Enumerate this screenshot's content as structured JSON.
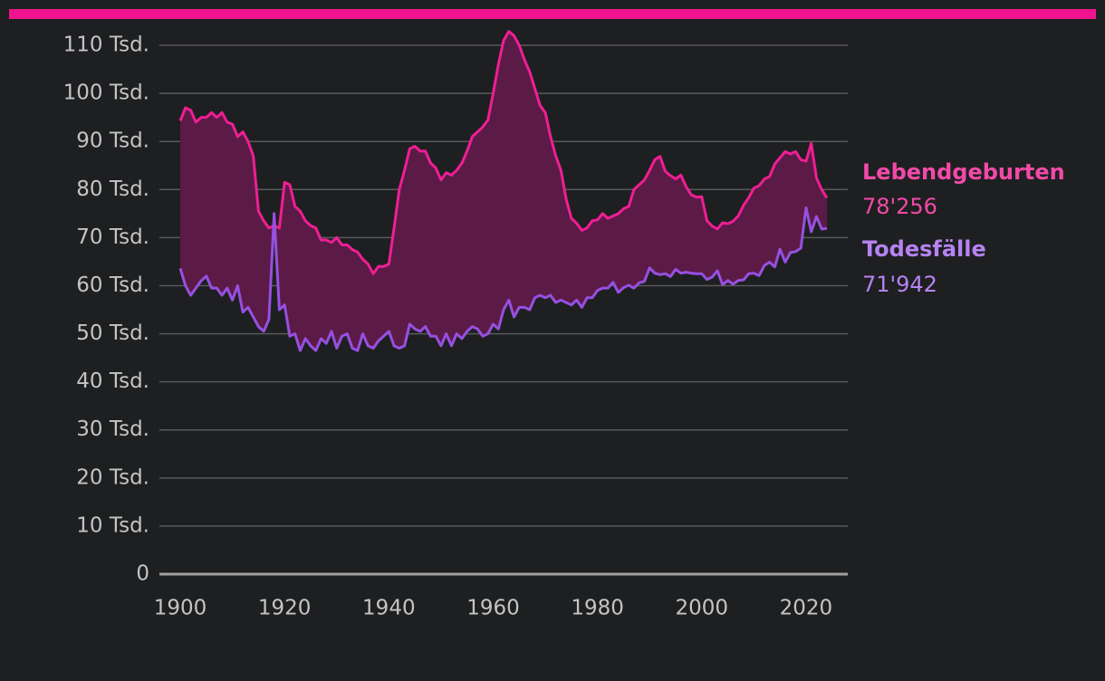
{
  "chart_data": {
    "type": "line",
    "x": [
      1900,
      1901,
      1902,
      1903,
      1904,
      1905,
      1906,
      1907,
      1908,
      1909,
      1910,
      1911,
      1912,
      1913,
      1914,
      1915,
      1916,
      1917,
      1918,
      1919,
      1920,
      1921,
      1922,
      1923,
      1924,
      1925,
      1926,
      1927,
      1928,
      1929,
      1930,
      1931,
      1932,
      1933,
      1934,
      1935,
      1936,
      1937,
      1938,
      1939,
      1940,
      1941,
      1942,
      1943,
      1944,
      1945,
      1946,
      1947,
      1948,
      1949,
      1950,
      1951,
      1952,
      1953,
      1954,
      1955,
      1956,
      1957,
      1958,
      1959,
      1960,
      1961,
      1962,
      1963,
      1964,
      1965,
      1966,
      1967,
      1968,
      1969,
      1970,
      1971,
      1972,
      1973,
      1974,
      1975,
      1976,
      1977,
      1978,
      1979,
      1980,
      1981,
      1982,
      1983,
      1984,
      1985,
      1986,
      1987,
      1988,
      1989,
      1990,
      1991,
      1992,
      1993,
      1994,
      1995,
      1996,
      1997,
      1998,
      1999,
      2000,
      2001,
      2002,
      2003,
      2004,
      2005,
      2006,
      2007,
      2008,
      2009,
      2010,
      2011,
      2012,
      2013,
      2014,
      2015,
      2016,
      2017,
      2018,
      2019,
      2020,
      2021,
      2022,
      2023,
      2024
    ],
    "series": [
      {
        "name": "Lebendgeburten",
        "color": "#ee1f93",
        "label_color": "#f24aa8",
        "last_value_label": "78'256",
        "values": [
          94300,
          97000,
          96500,
          94000,
          95000,
          95000,
          96000,
          95000,
          96000,
          94000,
          93600,
          91000,
          92000,
          90000,
          87000,
          75500,
          73500,
          72000,
          72500,
          72000,
          81500,
          81000,
          76500,
          75500,
          73500,
          72500,
          72000,
          69500,
          69500,
          69000,
          70000,
          68500,
          68500,
          67500,
          67000,
          65500,
          64500,
          62500,
          64000,
          64000,
          64500,
          72000,
          80000,
          84000,
          88500,
          89000,
          88000,
          88000,
          85500,
          84500,
          82000,
          83500,
          83000,
          84000,
          85500,
          88000,
          91000,
          92000,
          93000,
          94500,
          100000,
          106000,
          111000,
          112900,
          112000,
          110000,
          107000,
          104500,
          101000,
          97500,
          96000,
          91000,
          87000,
          84000,
          78000,
          74000,
          73000,
          71500,
          72000,
          73500,
          73700,
          75000,
          74000,
          74500,
          75000,
          76000,
          76500,
          80000,
          81000,
          82000,
          84000,
          86200,
          86900,
          83800,
          82900,
          82200,
          83000,
          80600,
          78900,
          78400,
          78500,
          73500,
          72400,
          71800,
          73100,
          72900,
          73400,
          74500,
          76700,
          78300,
          80300,
          80800,
          82200,
          82700,
          85300,
          86600,
          87900,
          87400,
          87900,
          86200,
          85900,
          89600,
          82400,
          80000,
          78256
        ]
      },
      {
        "name": "Todesfälle",
        "color": "#9650e0",
        "label_color": "#b683f2",
        "last_value_label": "71'942",
        "values": [
          63600,
          60000,
          58000,
          59500,
          61000,
          62000,
          59500,
          59500,
          58000,
          59500,
          57000,
          60000,
          54500,
          55500,
          53500,
          51500,
          50500,
          53000,
          75000,
          55000,
          56000,
          49500,
          50000,
          46500,
          49000,
          47500,
          46500,
          49000,
          48000,
          50500,
          47000,
          49500,
          50000,
          47000,
          46500,
          50000,
          47500,
          47000,
          48500,
          49500,
          50500,
          47500,
          47000,
          47500,
          52000,
          51000,
          50500,
          51500,
          49500,
          49500,
          47500,
          50000,
          47500,
          50000,
          49000,
          50500,
          51500,
          51000,
          49500,
          50000,
          52000,
          51000,
          55000,
          57000,
          53500,
          55500,
          55500,
          55000,
          57500,
          58000,
          57500,
          58000,
          56500,
          57000,
          56500,
          56000,
          57000,
          55500,
          57500,
          57500,
          59000,
          59500,
          59500,
          60700,
          58600,
          59600,
          60100,
          59500,
          60600,
          60900,
          63700,
          62600,
          62300,
          62500,
          61900,
          63400,
          62600,
          62800,
          62600,
          62500,
          62500,
          61300,
          61800,
          63100,
          60200,
          61100,
          60300,
          61100,
          61200,
          62500,
          62600,
          62100,
          64200,
          64900,
          63900,
          67600,
          64900,
          66900,
          67100,
          67800,
          76200,
          71200,
          74400,
          71800,
          71942
        ]
      }
    ],
    "band_color": "#5c1a46",
    "xlim": [
      1896,
      2028
    ],
    "xticks": [
      1900,
      1920,
      1940,
      1960,
      1980,
      2000,
      2020
    ],
    "ylim": [
      0,
      115000
    ],
    "yticks": [
      0,
      {
        "value": 10000,
        "label": "10 Tsd."
      },
      {
        "value": 20000,
        "label": "20 Tsd."
      },
      {
        "value": 30000,
        "label": "30 Tsd."
      },
      {
        "value": 40000,
        "label": "40 Tsd."
      },
      {
        "value": 50000,
        "label": "50 Tsd."
      },
      {
        "value": 60000,
        "label": "60 Tsd."
      },
      {
        "value": 70000,
        "label": "70 Tsd."
      },
      {
        "value": 80000,
        "label": "80 Tsd."
      },
      {
        "value": 90000,
        "label": "90 Tsd."
      },
      {
        "value": 100000,
        "label": "100 Tsd."
      },
      {
        "value": 110000,
        "label": "110 Tsd."
      }
    ],
    "grid": true
  }
}
